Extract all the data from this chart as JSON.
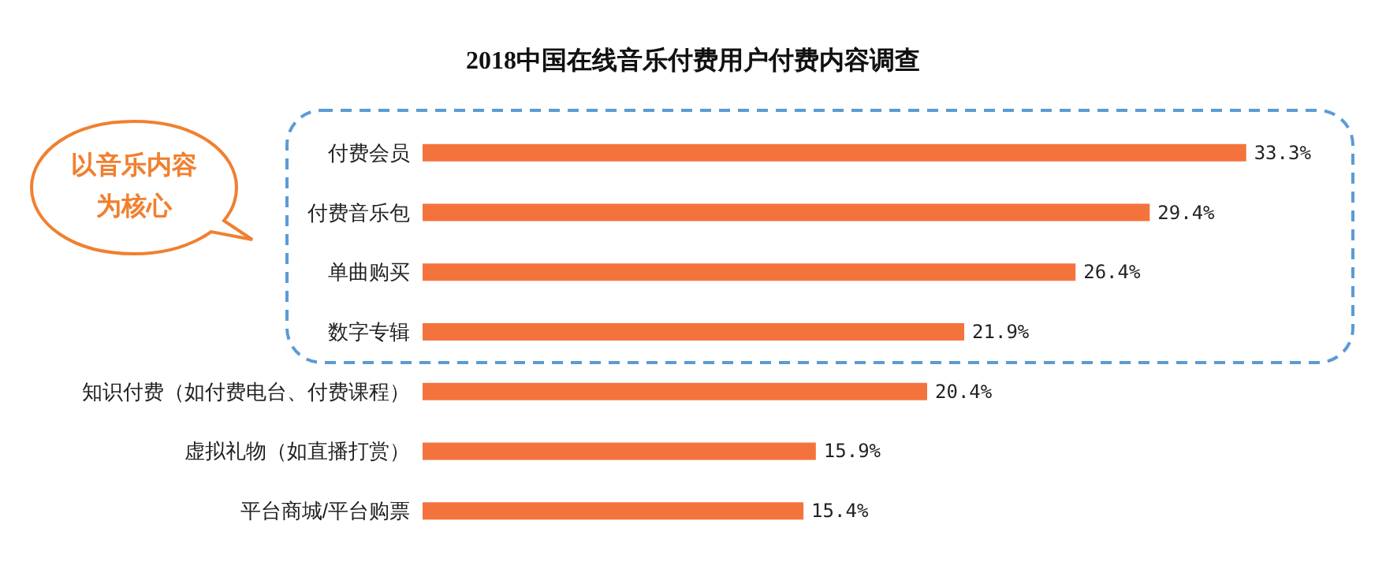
{
  "chart_data": {
    "type": "bar",
    "orientation": "horizontal",
    "title": "2018中国在线音乐付费用户付费内容调查",
    "categories": [
      "付费会员",
      "付费音乐包",
      "单曲购买",
      "数字专辑",
      "知识付费（如付费电台、付费课程）",
      "虚拟礼物（如直播打赏）",
      "平台商城/平台购票"
    ],
    "values": [
      33.3,
      29.4,
      26.4,
      21.9,
      20.4,
      15.9,
      15.4
    ],
    "value_labels": [
      "33.3%",
      "29.4%",
      "26.4%",
      "21.9%",
      "20.4%",
      "15.9%",
      "15.4%"
    ],
    "color": "#f4733d",
    "annotations": [
      "以音乐内容为核心"
    ],
    "grid": false
  }
}
